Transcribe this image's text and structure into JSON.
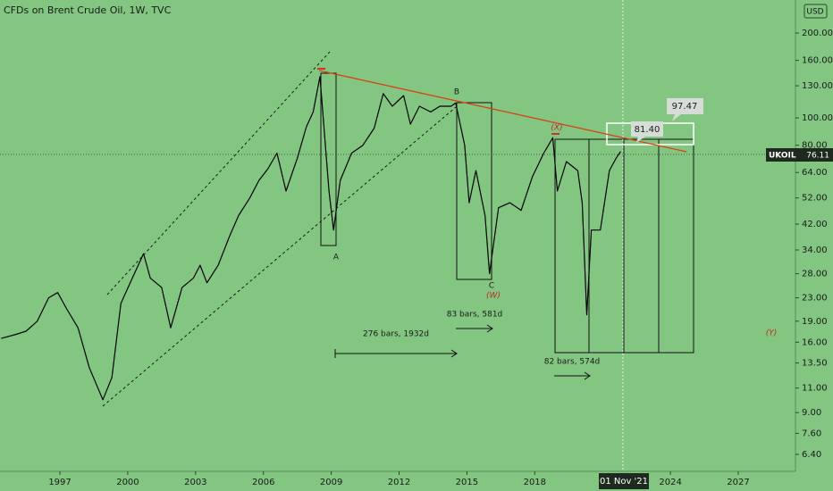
{
  "chart_data": {
    "type": "line",
    "title": "CFDs on Brent Crude Oil, 1W, TVC",
    "currency": "USD",
    "log_scale": true,
    "x": [
      1994.4,
      1995,
      1995.5,
      1996,
      1996.5,
      1996.9,
      1997.3,
      1997.8,
      1998.3,
      1998.9,
      1999.3,
      1999.7,
      2000.2,
      2000.7,
      2001.0,
      2001.5,
      2001.9,
      2002.4,
      2002.9,
      2003.2,
      2003.5,
      2004.0,
      2004.5,
      2004.9,
      2005.4,
      2005.8,
      2006.2,
      2006.6,
      2007.0,
      2007.5,
      2007.9,
      2008.2,
      2008.5,
      2008.9,
      2009.1,
      2009.4,
      2009.9,
      2010.4,
      2010.9,
      2011.3,
      2011.7,
      2012.2,
      2012.5,
      2012.9,
      2013.4,
      2013.8,
      2014.3,
      2014.5,
      2014.9,
      2015.1,
      2015.4,
      2015.8,
      2016.0,
      2016.4,
      2016.9,
      2017.4,
      2017.9,
      2018.4,
      2018.8,
      2019.0,
      2019.4,
      2019.9,
      2020.1,
      2020.3,
      2020.5,
      2020.9,
      2021.3,
      2021.6,
      2021.8
    ],
    "series": [
      {
        "name": "UKOIL",
        "color": "#000000",
        "values": [
          16.5,
          17,
          17.5,
          19,
          23,
          24,
          21,
          18,
          13,
          10,
          12,
          22,
          27,
          33,
          27,
          25,
          18,
          25,
          27,
          30,
          26,
          30,
          38,
          45,
          52,
          60,
          66,
          75,
          55,
          72,
          93,
          105,
          140,
          55,
          40,
          60,
          75,
          80,
          92,
          122,
          110,
          120,
          95,
          110,
          105,
          110,
          110,
          113,
          80,
          50,
          65,
          45,
          28,
          48,
          50,
          47,
          62,
          75,
          85,
          55,
          70,
          65,
          50,
          20,
          40,
          40,
          65,
          72,
          76
        ]
      }
    ],
    "last_value": 76.11,
    "xlim": [
      1994.35,
      2029.53
    ],
    "xticks": [
      1997,
      2000,
      2003,
      2006,
      2009,
      2012,
      2015,
      2018,
      2024,
      2027
    ],
    "ylim": [
      5.57,
      262
    ],
    "yticks": [
      {
        "value": 6.4,
        "label": "6.40"
      },
      {
        "value": 7.6,
        "label": "7.60"
      },
      {
        "value": 9,
        "label": "9.00"
      },
      {
        "value": 11,
        "label": "11.00"
      },
      {
        "value": 13.5,
        "label": "13.50"
      },
      {
        "value": 16,
        "label": "16.00"
      },
      {
        "value": 19,
        "label": "19.00"
      },
      {
        "value": 23,
        "label": "23.00"
      },
      {
        "value": 28,
        "label": "28.00"
      },
      {
        "value": 34,
        "label": "34.00"
      },
      {
        "value": 42,
        "label": "42.00"
      },
      {
        "value": 52,
        "label": "52.00"
      },
      {
        "value": 64,
        "label": "64.00"
      },
      {
        "value": 80,
        "label": "80.00"
      },
      {
        "value": 100,
        "label": "100.00"
      },
      {
        "value": 130,
        "label": "130.00"
      },
      {
        "value": 160,
        "label": "160.00"
      },
      {
        "value": 200,
        "label": "200.00"
      }
    ],
    "crosshair_label": "01 Nov '21",
    "callouts": [
      97.47,
      {
        "value": 81.4,
        "label": "81.40"
      }
    ],
    "annotations": {
      "a": "A",
      "b": "B",
      "c": "C",
      "w": "(W)",
      "x": "(X)",
      "y": "(Y)",
      "range1": "276 bars, 1932d",
      "range2": "83 bars, 581d",
      "range3": "82 bars, 574d"
    }
  }
}
